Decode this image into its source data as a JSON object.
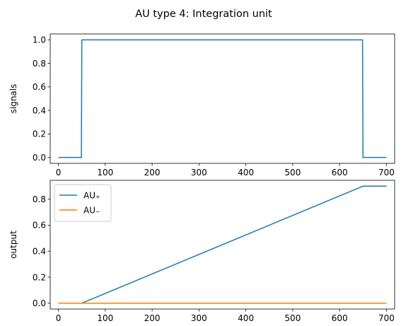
{
  "figure_title": "AU type 4: Integration unit",
  "chart_data": [
    {
      "type": "line",
      "title": "",
      "xlabel": "",
      "ylabel": "signals",
      "xlim": [
        -17.5,
        717.5
      ],
      "ylim": [
        -0.05,
        1.05
      ],
      "xticks": [
        0,
        100,
        200,
        300,
        400,
        500,
        600,
        700
      ],
      "yticks": [
        0.0,
        0.2,
        0.4,
        0.6,
        0.8,
        1.0
      ],
      "ytick_labels": [
        "0.0",
        "0.2",
        "0.4",
        "0.6",
        "0.8",
        "1.0"
      ],
      "grid": false,
      "legend": null,
      "series": [
        {
          "color": "#1f77b4",
          "x": [
            0,
            49,
            50,
            649,
            650,
            700
          ],
          "y": [
            0,
            0,
            1,
            1,
            0,
            0
          ]
        }
      ]
    },
    {
      "type": "line",
      "title": "",
      "xlabel": "",
      "ylabel": "output",
      "xlim": [
        -17.5,
        717.5
      ],
      "ylim": [
        -0.045,
        0.945
      ],
      "xticks": [
        0,
        100,
        200,
        300,
        400,
        500,
        600,
        700
      ],
      "yticks": [
        0.0,
        0.2,
        0.4,
        0.6,
        0.8
      ],
      "ytick_labels": [
        "0.0",
        "0.2",
        "0.4",
        "0.6",
        "0.8"
      ],
      "grid": false,
      "legend": "top-left",
      "series": [
        {
          "name": "AU₊",
          "color": "#1f77b4",
          "x": [
            0,
            50,
            650,
            700
          ],
          "y": [
            0,
            0,
            0.9,
            0.9
          ]
        },
        {
          "name": "AU₋",
          "color": "#ff7f0e",
          "x": [
            0,
            700
          ],
          "y": [
            0,
            0
          ]
        }
      ]
    }
  ]
}
